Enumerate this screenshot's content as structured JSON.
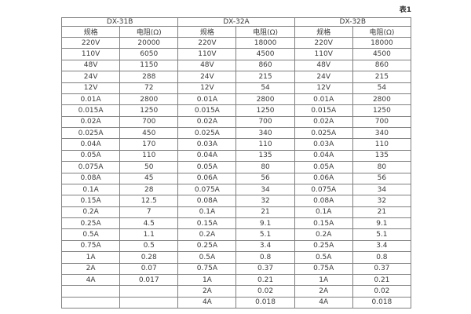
{
  "caption": "表1",
  "colors": {
    "background": "#ffffff",
    "border": "#7f7f7f",
    "text": "#3a3a3a"
  },
  "table": {
    "column_groups": [
      {
        "label": "DX-31B",
        "columns": [
          "规格",
          "电阻(Ω)"
        ],
        "rows": [
          [
            "220V",
            "20000"
          ],
          [
            "110V",
            "6050"
          ],
          [
            "48V",
            "1150"
          ],
          [
            "24V",
            "288"
          ],
          [
            "12V",
            "72"
          ],
          [
            "0.01A",
            "2800"
          ],
          [
            "0.015A",
            "1250"
          ],
          [
            "0.02A",
            "700"
          ],
          [
            "0.025A",
            "450"
          ],
          [
            "0.04A",
            "170"
          ],
          [
            "0.05A",
            "110"
          ],
          [
            "0.075A",
            "50"
          ],
          [
            "0.08A",
            "45"
          ],
          [
            "0.1A",
            "28"
          ],
          [
            "0.15A",
            "12.5"
          ],
          [
            "0.2A",
            "7"
          ],
          [
            "0.25A",
            "4.5"
          ],
          [
            "0.5A",
            "1.1"
          ],
          [
            "0.75A",
            "0.5"
          ],
          [
            "1A",
            "0.28"
          ],
          [
            "2A",
            "0.07"
          ],
          [
            "4A",
            "0.017"
          ],
          [
            "",
            ""
          ],
          [
            "",
            ""
          ]
        ]
      },
      {
        "label": "DX-32A",
        "columns": [
          "规格",
          "电阻(Ω)"
        ],
        "rows": [
          [
            "220V",
            "18000"
          ],
          [
            "110V",
            "4500"
          ],
          [
            "48V",
            "860"
          ],
          [
            "24V",
            "215"
          ],
          [
            "12V",
            "54"
          ],
          [
            "0.01A",
            "2800"
          ],
          [
            "0.015A",
            "1250"
          ],
          [
            "0.02A",
            "700"
          ],
          [
            "0.025A",
            "340"
          ],
          [
            "0.03A",
            "110"
          ],
          [
            "0.04A",
            "135"
          ],
          [
            "0.05A",
            "80"
          ],
          [
            "0.06A",
            "56"
          ],
          [
            "0.075A",
            "34"
          ],
          [
            "0.08A",
            "32"
          ],
          [
            "0.1A",
            "21"
          ],
          [
            "0.15A",
            "9.1"
          ],
          [
            "0.2A",
            "5.1"
          ],
          [
            "0.25A",
            "3.4"
          ],
          [
            "0.5A",
            "0.8"
          ],
          [
            "0.75A",
            "0.37"
          ],
          [
            "1A",
            "0.21"
          ],
          [
            "2A",
            "0.02"
          ],
          [
            "4A",
            "0.018"
          ]
        ]
      },
      {
        "label": "DX-32B",
        "columns": [
          "规格",
          "电阻(Ω)"
        ],
        "rows": [
          [
            "220V",
            "18000"
          ],
          [
            "110V",
            "4500"
          ],
          [
            "48V",
            "860"
          ],
          [
            "24V",
            "215"
          ],
          [
            "12V",
            "54"
          ],
          [
            "0.01A",
            "2800"
          ],
          [
            "0.015A",
            "1250"
          ],
          [
            "0.02A",
            "700"
          ],
          [
            "0.025A",
            "340"
          ],
          [
            "0.03A",
            "110"
          ],
          [
            "0.04A",
            "135"
          ],
          [
            "0.05A",
            "80"
          ],
          [
            "0.06A",
            "56"
          ],
          [
            "0.075A",
            "34"
          ],
          [
            "0.08A",
            "32"
          ],
          [
            "0.1A",
            "21"
          ],
          [
            "0.15A",
            "9.1"
          ],
          [
            "0.2A",
            "5.1"
          ],
          [
            "0.25A",
            "3.4"
          ],
          [
            "0.5A",
            "0.8"
          ],
          [
            "0.75A",
            "0.37"
          ],
          [
            "1A",
            "0.21"
          ],
          [
            "2A",
            "0.02"
          ],
          [
            "4A",
            "0.018"
          ]
        ]
      }
    ]
  }
}
